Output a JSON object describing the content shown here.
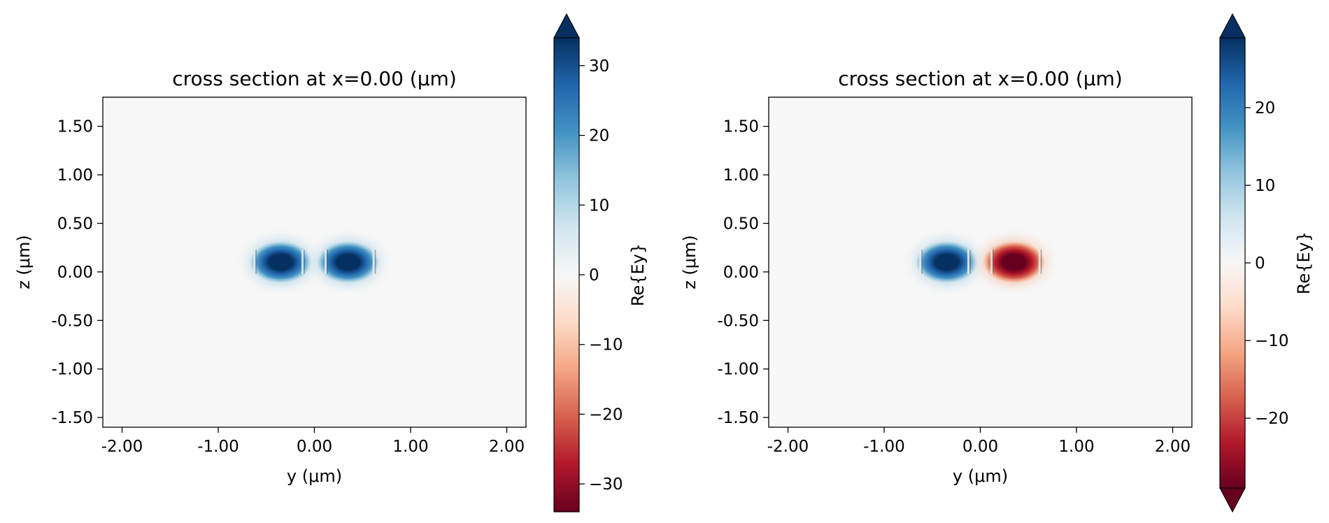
{
  "chart_data": [
    {
      "type": "heatmap",
      "title": "cross section at x=0.00 (μm)",
      "xlabel": "y (μm)",
      "ylabel": "z (μm)",
      "xlim": [
        -2.2,
        2.2
      ],
      "ylim": [
        -1.6,
        1.8
      ],
      "x_ticks": [
        "-2.00",
        "-1.00",
        "0.00",
        "1.00",
        "2.00"
      ],
      "y_ticks": [
        "-1.50",
        "-1.00",
        "-0.50",
        "0.00",
        "0.50",
        "1.00",
        "1.50"
      ],
      "colorbar": {
        "label": "Re{Ey}",
        "range": [
          -34,
          34
        ],
        "ticks": [
          "−30",
          "−20",
          "−10",
          "0",
          "10",
          "20",
          "30"
        ],
        "extend": "max",
        "colormap": "RdBu"
      },
      "field": {
        "lobes": [
          {
            "y": -0.35,
            "z": 0.1,
            "amplitude": 34
          },
          {
            "y": 0.35,
            "z": 0.1,
            "amplitude": 34
          }
        ]
      }
    },
    {
      "type": "heatmap",
      "title": "cross section at x=0.00 (μm)",
      "xlabel": "y (μm)",
      "ylabel": "z (μm)",
      "xlim": [
        -2.2,
        2.2
      ],
      "ylim": [
        -1.6,
        1.8
      ],
      "x_ticks": [
        "-2.00",
        "-1.00",
        "0.00",
        "1.00",
        "2.00"
      ],
      "y_ticks": [
        "-1.50",
        "-1.00",
        "-0.50",
        "0.00",
        "0.50",
        "1.00",
        "1.50"
      ],
      "colorbar": {
        "label": "Re{Ey}",
        "range": [
          -29,
          29
        ],
        "ticks": [
          "−20",
          "−10",
          "0",
          "10",
          "20"
        ],
        "extend": "both",
        "colormap": "RdBu"
      },
      "field": {
        "lobes": [
          {
            "y": -0.35,
            "z": 0.1,
            "amplitude": 29
          },
          {
            "y": 0.35,
            "z": 0.1,
            "amplitude": -29
          }
        ]
      }
    }
  ]
}
